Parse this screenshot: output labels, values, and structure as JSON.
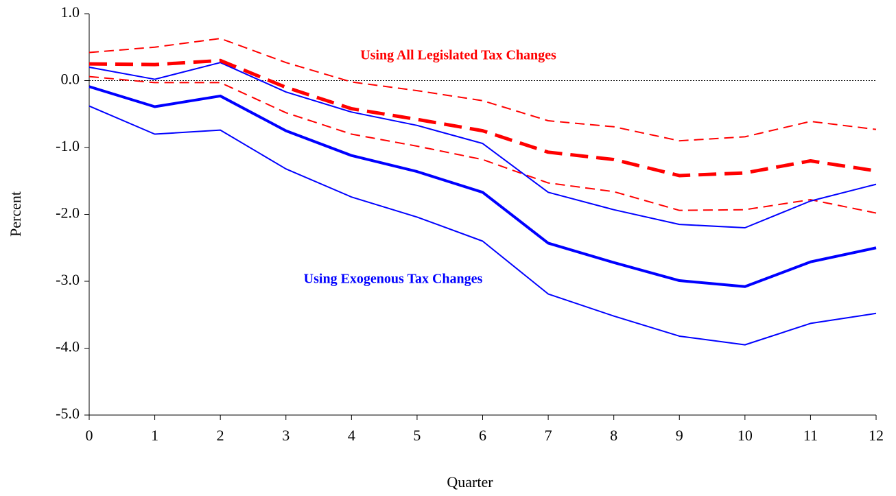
{
  "chart_data": {
    "type": "line",
    "x_label": "Quarter",
    "y_label": "Percent",
    "annotations": [
      {
        "text": "Using All Legislated Tax Changes",
        "color": "#ff0000"
      },
      {
        "text": "Using Exogenous Tax Changes",
        "color": "#0000ff"
      }
    ],
    "x": [
      0,
      1,
      2,
      3,
      4,
      5,
      6,
      7,
      8,
      9,
      10,
      11,
      12
    ],
    "xlim": [
      0,
      12
    ],
    "xticks": [
      0,
      1,
      2,
      3,
      4,
      5,
      6,
      7,
      8,
      9,
      10,
      11,
      12
    ],
    "ylim": [
      -5,
      1
    ],
    "yticks": [
      {
        "value": -5,
        "label": "-5.0"
      },
      {
        "value": -4,
        "label": "-4.0"
      },
      {
        "value": -3,
        "label": "-3.0"
      },
      {
        "value": -2,
        "label": "-2.0"
      },
      {
        "value": -1,
        "label": "-1.0"
      },
      {
        "value": 0,
        "label": "0.0"
      },
      {
        "value": 1,
        "label": "1.0"
      }
    ],
    "zero_line": true,
    "series": [
      {
        "color": "#ff0000",
        "style": "dashed",
        "width": 2,
        "values": [
          0.42,
          0.5,
          0.63,
          0.27,
          -0.02,
          -0.15,
          -0.3,
          -0.6,
          -0.69,
          -0.9,
          -0.84,
          -0.61,
          -0.73
        ]
      },
      {
        "color": "#ff0000",
        "style": "dashed",
        "width": 2,
        "values": [
          0.06,
          -0.03,
          -0.03,
          -0.48,
          -0.8,
          -0.98,
          -1.18,
          -1.53,
          -1.66,
          -1.94,
          -1.93,
          -1.78,
          -1.98
        ]
      },
      {
        "color": "#0000ff",
        "style": "solid",
        "width": 2,
        "values": [
          0.2,
          0.02,
          0.27,
          -0.17,
          -0.47,
          -0.67,
          -0.94,
          -1.67,
          -1.93,
          -2.15,
          -2.2,
          -1.8,
          -1.55
        ]
      },
      {
        "color": "#0000ff",
        "style": "solid",
        "width": 2,
        "values": [
          -0.38,
          -0.8,
          -0.74,
          -1.32,
          -1.74,
          -2.04,
          -2.4,
          -3.19,
          -3.52,
          -3.82,
          -3.95,
          -3.63,
          -3.48
        ]
      },
      {
        "color": "#ff0000",
        "style": "dashed",
        "width": 5,
        "values": [
          0.25,
          0.24,
          0.3,
          -0.1,
          -0.42,
          -0.58,
          -0.75,
          -1.07,
          -1.18,
          -1.42,
          -1.38,
          -1.2,
          -1.35
        ]
      },
      {
        "color": "#0000ff",
        "style": "solid",
        "width": 4,
        "values": [
          -0.09,
          -0.39,
          -0.23,
          -0.75,
          -1.12,
          -1.36,
          -1.67,
          -2.43,
          -2.72,
          -2.99,
          -3.08,
          -2.71,
          -2.5
        ]
      }
    ]
  }
}
